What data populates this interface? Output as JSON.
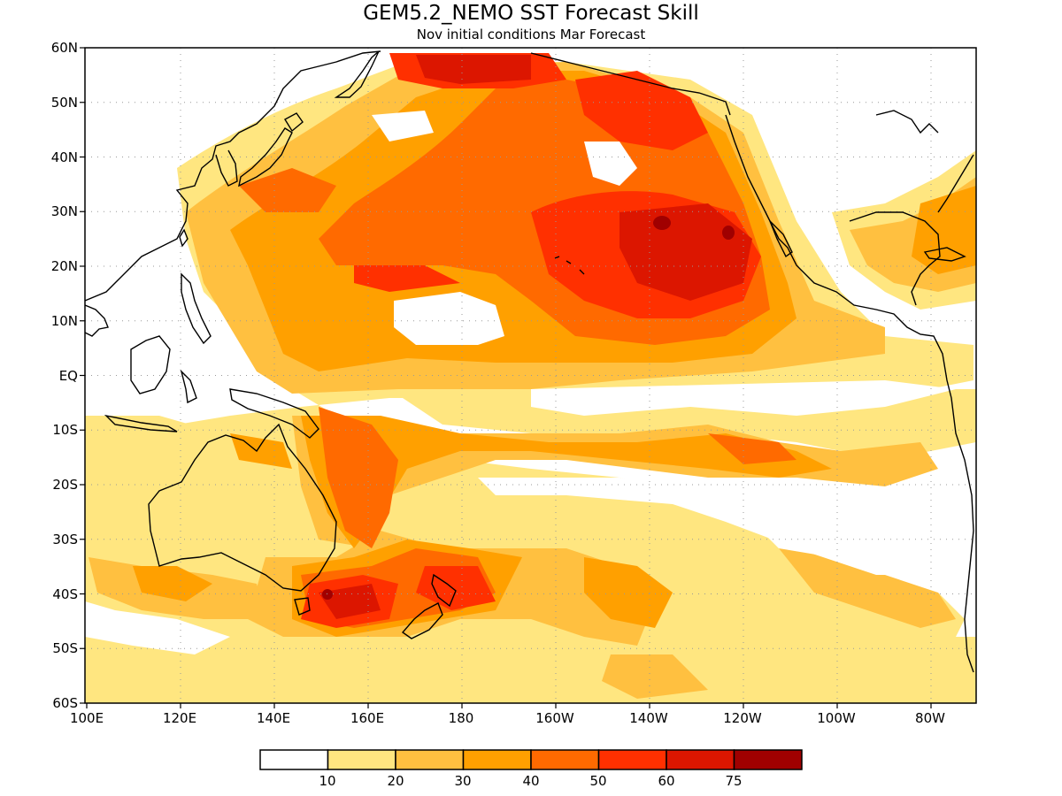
{
  "title": "GEM5.2_NEMO SST Forecast Skill",
  "subtitle": "Nov initial conditions  Mar Forecast",
  "y_axis": {
    "labels": [
      "60N",
      "50N",
      "40N",
      "30N",
      "20N",
      "10N",
      "EQ",
      "10S",
      "20S",
      "30S",
      "40S",
      "50S",
      "60S"
    ],
    "range": [
      -60,
      60
    ]
  },
  "x_axis": {
    "labels": [
      "100E",
      "120E",
      "140E",
      "160E",
      "180",
      "160W",
      "140W",
      "120W",
      "100W",
      "80W"
    ],
    "range_degrees_east": [
      100,
      290
    ]
  },
  "grid": true,
  "colorbar": {
    "labels": [
      "10",
      "20",
      "30",
      "40",
      "50",
      "60",
      "75"
    ],
    "colors": [
      "#ffffff",
      "#ffe680",
      "#ffc040",
      "#ffa000",
      "#ff6a00",
      "#ff3000",
      "#dc1600",
      "#a00000"
    ]
  },
  "colors": {
    "land_outline": "#000000",
    "grid_lines": "#999999",
    "frame": "#000000"
  }
}
